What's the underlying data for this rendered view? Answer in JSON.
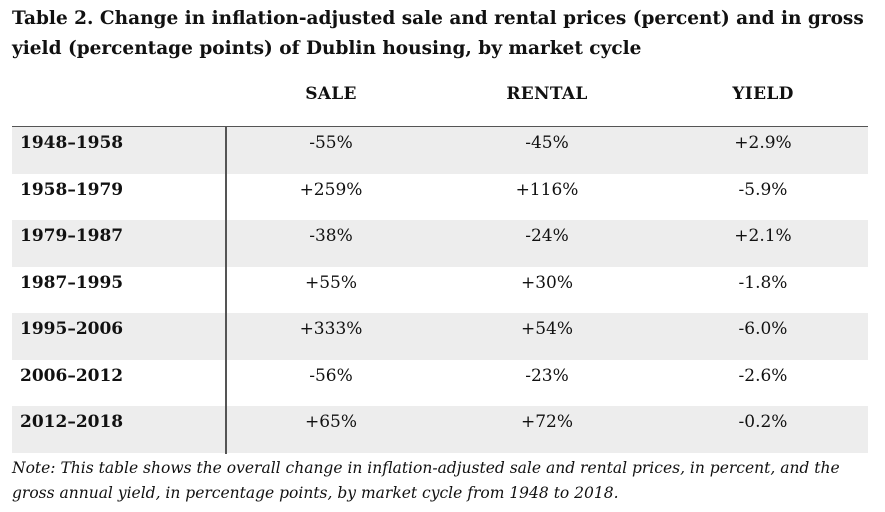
{
  "title": "Table 2. Change in inflation-adjusted sale and rental prices (percent) and in gross yield (percentage points) of Dublin housing, by market cycle",
  "columns": {
    "sale": "SALE",
    "rental": "RENTAL",
    "yield": "YIELD"
  },
  "rows": [
    {
      "period": "1948–1958",
      "sale": "-55%",
      "rental": "-45%",
      "yield": "+2.9%"
    },
    {
      "period": "1958–1979",
      "sale": "+259%",
      "rental": "+116%",
      "yield": "-5.9%"
    },
    {
      "period": "1979–1987",
      "sale": "-38%",
      "rental": "-24%",
      "yield": "+2.1%"
    },
    {
      "period": "1987–1995",
      "sale": "+55%",
      "rental": "+30%",
      "yield": "-1.8%"
    },
    {
      "period": "1995–2006",
      "sale": "+333%",
      "rental": "+54%",
      "yield": "-6.0%"
    },
    {
      "period": "2006–2012",
      "sale": "-56%",
      "rental": "-23%",
      "yield": "-2.6%"
    },
    {
      "period": "2012–2018",
      "sale": "+65%",
      "rental": "+72%",
      "yield": "-0.2%"
    }
  ],
  "note": "Note: This table shows the overall change in inflation-adjusted sale and rental prices, in percent, and the gross annual yield, in percentage points, by market cycle from 1948 to 2018.",
  "colors": {
    "shaded_row": "#ededed",
    "rule": "#555555",
    "text": "#111111"
  }
}
